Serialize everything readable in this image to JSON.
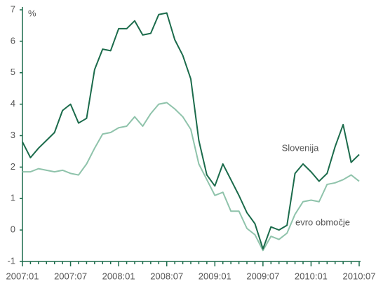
{
  "chart_data": {
    "type": "line",
    "y_label": "%",
    "categories": [
      "2007:01",
      null,
      null,
      null,
      null,
      null,
      "2007:07",
      null,
      null,
      null,
      null,
      null,
      "2008:01",
      null,
      null,
      null,
      null,
      null,
      "2008:07",
      null,
      null,
      null,
      null,
      null,
      "2009:01",
      null,
      null,
      null,
      null,
      null,
      "2009:07",
      null,
      null,
      null,
      null,
      null,
      "2010:01",
      null,
      null,
      null,
      null,
      null,
      "2010:07"
    ],
    "series": [
      {
        "name": "Slovenija",
        "color": "#1b6b4b",
        "values": [
          2.8,
          2.3,
          2.6,
          2.85,
          3.1,
          3.8,
          4.0,
          3.4,
          3.55,
          5.1,
          5.75,
          5.7,
          6.4,
          6.4,
          6.65,
          6.2,
          6.25,
          6.85,
          6.9,
          6.05,
          5.55,
          4.8,
          2.85,
          1.75,
          1.4,
          2.1,
          1.6,
          1.1,
          0.55,
          0.2,
          -0.6,
          0.1,
          0.0,
          0.15,
          1.8,
          2.1,
          1.85,
          1.55,
          1.8,
          2.65,
          3.35,
          2.15,
          2.4
        ]
      },
      {
        "name": "evro območje",
        "color": "#8fc3ab",
        "values": [
          1.85,
          1.85,
          1.95,
          1.9,
          1.85,
          1.9,
          1.8,
          1.75,
          2.1,
          2.6,
          3.05,
          3.1,
          3.25,
          3.3,
          3.6,
          3.3,
          3.7,
          4.0,
          4.05,
          3.85,
          3.6,
          3.2,
          2.1,
          1.6,
          1.1,
          1.2,
          0.6,
          0.6,
          0.05,
          -0.15,
          -0.65,
          -0.2,
          -0.3,
          -0.1,
          0.5,
          0.9,
          0.95,
          0.9,
          1.45,
          1.5,
          1.6,
          1.75,
          1.55
        ]
      }
    ],
    "ylim": [
      -1,
      7
    ],
    "yticks": [
      -1,
      0,
      1,
      2,
      3,
      4,
      5,
      6,
      7
    ]
  }
}
